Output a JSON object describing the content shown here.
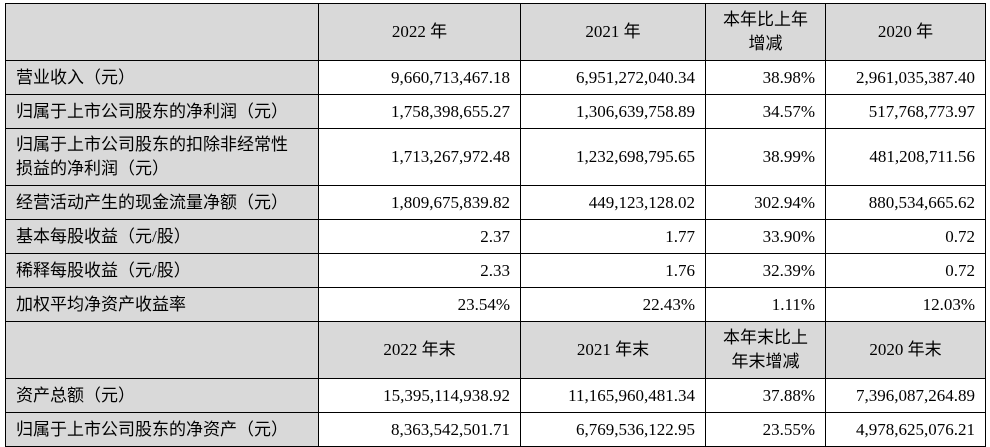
{
  "colors": {
    "header_fill": "#d9d9d9",
    "label_fill": "#d9d9d9",
    "value_fill": "#ffffff",
    "border": "#000000",
    "text": "#000000"
  },
  "table": {
    "sections": [
      {
        "corner_label": "",
        "columns": [
          "2022 年",
          "2021 年",
          "本年比上年增减",
          "2020 年"
        ],
        "rows": [
          {
            "label": "营业收入（元）",
            "values": [
              "9,660,713,467.18",
              "6,951,272,040.34",
              "38.98%",
              "2,961,035,387.40"
            ]
          },
          {
            "label": "归属于上市公司股东的净利润（元）",
            "values": [
              "1,758,398,655.27",
              "1,306,639,758.89",
              "34.57%",
              "517,768,773.97"
            ]
          },
          {
            "label": "归属于上市公司股东的扣除非经常性损益的净利润（元）",
            "values": [
              "1,713,267,972.48",
              "1,232,698,795.65",
              "38.99%",
              "481,208,711.56"
            ]
          },
          {
            "label": "经营活动产生的现金流量净额（元）",
            "values": [
              "1,809,675,839.82",
              "449,123,128.02",
              "302.94%",
              "880,534,665.62"
            ]
          },
          {
            "label": "基本每股收益（元/股）",
            "values": [
              "2.37",
              "1.77",
              "33.90%",
              "0.72"
            ]
          },
          {
            "label": "稀释每股收益（元/股）",
            "values": [
              "2.33",
              "1.76",
              "32.39%",
              "0.72"
            ]
          },
          {
            "label": "加权平均净资产收益率",
            "values": [
              "23.54%",
              "22.43%",
              "1.11%",
              "12.03%"
            ]
          }
        ]
      },
      {
        "corner_label": "",
        "columns": [
          "2022 年末",
          "2021 年末",
          "本年末比上年末增减",
          "2020 年末"
        ],
        "rows": [
          {
            "label": "资产总额（元）",
            "values": [
              "15,395,114,938.92",
              "11,165,960,481.34",
              "37.88%",
              "7,396,087,264.89"
            ]
          },
          {
            "label": "归属于上市公司股东的净资产（元）",
            "values": [
              "8,363,542,501.71",
              "6,769,536,122.95",
              "23.55%",
              "4,978,625,076.21"
            ]
          }
        ]
      }
    ]
  }
}
